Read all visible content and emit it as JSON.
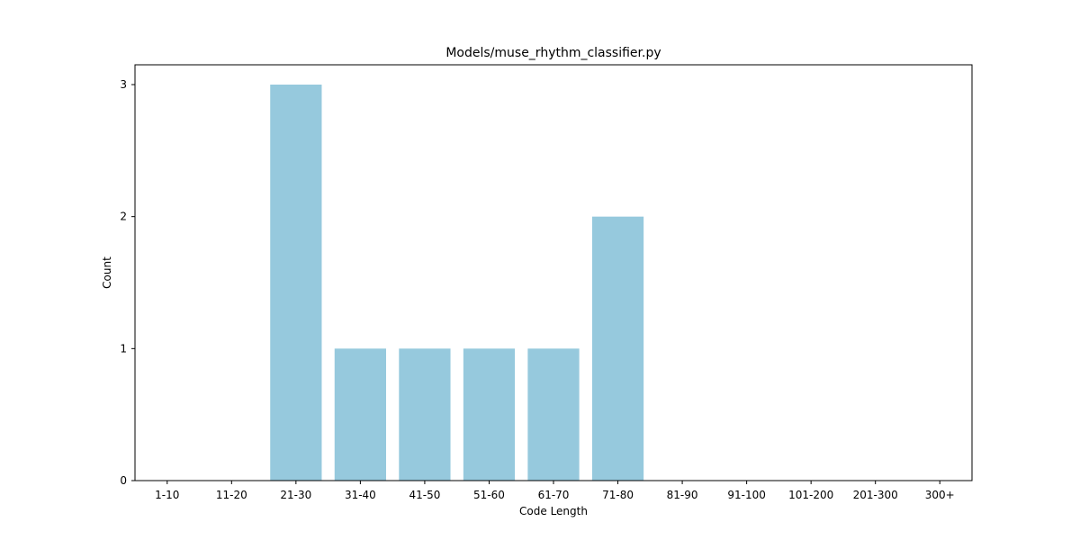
{
  "chart_data": {
    "type": "bar",
    "title": "Models/muse_rhythm_classifier.py",
    "xlabel": "Code Length",
    "ylabel": "Count",
    "categories": [
      "1-10",
      "11-20",
      "21-30",
      "31-40",
      "41-50",
      "51-60",
      "61-70",
      "71-80",
      "81-90",
      "91-100",
      "101-200",
      "201-300",
      "300+"
    ],
    "values": [
      0,
      0,
      3,
      1,
      1,
      1,
      1,
      2,
      0,
      0,
      0,
      0,
      0
    ],
    "yticks": [
      "0",
      "1",
      "2",
      "3"
    ],
    "ylim": [
      0,
      3.15
    ],
    "grid": false,
    "legend": "none",
    "bar_color": "#96c9dd"
  }
}
